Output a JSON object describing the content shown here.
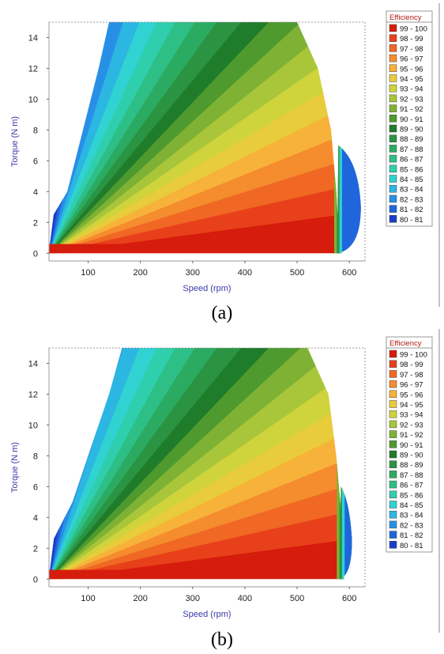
{
  "chart_data": [
    {
      "type": "heatmap",
      "panel_caption": "(a)",
      "xlabel": "Speed (rpm)",
      "ylabel": "Torque (N m)",
      "xlim": [
        25,
        630
      ],
      "ylim": [
        -0.5,
        15
      ],
      "x_ticks": [
        100,
        200,
        300,
        400,
        500,
        600
      ],
      "y_ticks": [
        0,
        2,
        4,
        6,
        8,
        10,
        12,
        14
      ],
      "grid": false,
      "legend_position": "right",
      "legend_title": "Efficiency",
      "legend": [
        {
          "label": "99 - 100",
          "color": "#d61c0c"
        },
        {
          "label": "98 - 99",
          "color": "#e8401a"
        },
        {
          "label": "97 - 98",
          "color": "#f06824"
        },
        {
          "label": "96 - 97",
          "color": "#f58c2e"
        },
        {
          "label": "95 - 96",
          "color": "#f7b23a"
        },
        {
          "label": "94 - 95",
          "color": "#e8cc3c"
        },
        {
          "label": "93 - 94",
          "color": "#cfd33c"
        },
        {
          "label": "92 - 93",
          "color": "#a9c63a"
        },
        {
          "label": "91 - 92",
          "color": "#7fb234"
        },
        {
          "label": "90 - 91",
          "color": "#4f9a2e"
        },
        {
          "label": "89 - 90",
          "color": "#1f7c2a"
        },
        {
          "label": "88 - 89",
          "color": "#2a9442"
        },
        {
          "label": "87 - 88",
          "color": "#2bab62"
        },
        {
          "label": "86 - 87",
          "color": "#2dbf86"
        },
        {
          "label": "85 - 86",
          "color": "#2fcfad"
        },
        {
          "label": "84 - 85",
          "color": "#30d2d2"
        },
        {
          "label": "83 - 84",
          "color": "#2cb6e2"
        },
        {
          "label": "82 - 83",
          "color": "#2790e6"
        },
        {
          "label": "81 - 82",
          "color": "#1f66dc"
        },
        {
          "label": "80 - 81",
          "color": "#1a3ec8"
        }
      ],
      "operating_region": {
        "left_boundary": [
          [
            25,
            2
          ],
          [
            60,
            4
          ],
          [
            90,
            8
          ],
          [
            120,
            12
          ],
          [
            140,
            15
          ]
        ],
        "top_flat_end_speed": 500,
        "right_boundary": [
          [
            500,
            15
          ],
          [
            540,
            12
          ],
          [
            565,
            8
          ],
          [
            575,
            4
          ],
          [
            580,
            1
          ],
          [
            585,
            0
          ]
        ],
        "bottom_torque": 0
      },
      "high_speed_lobe": {
        "x_max": 622,
        "y_max": 6
      }
    },
    {
      "type": "heatmap",
      "panel_caption": "(b)",
      "xlabel": "Speed (rpm)",
      "ylabel": "Torque (N m)",
      "xlim": [
        25,
        630
      ],
      "ylim": [
        -0.5,
        15
      ],
      "x_ticks": [
        100,
        200,
        300,
        400,
        500,
        600
      ],
      "y_ticks": [
        0,
        2,
        4,
        6,
        8,
        10,
        12,
        14
      ],
      "grid": false,
      "legend_position": "right",
      "legend_title": "Efficiency",
      "legend": [
        {
          "label": "99 - 100",
          "color": "#d61c0c"
        },
        {
          "label": "98 - 99",
          "color": "#e8401a"
        },
        {
          "label": "97 - 98",
          "color": "#f06824"
        },
        {
          "label": "96 - 97",
          "color": "#f58c2e"
        },
        {
          "label": "95 - 96",
          "color": "#f7b23a"
        },
        {
          "label": "94 - 95",
          "color": "#e8cc3c"
        },
        {
          "label": "93 - 94",
          "color": "#cfd33c"
        },
        {
          "label": "92 - 93",
          "color": "#a9c63a"
        },
        {
          "label": "91 - 92",
          "color": "#7fb234"
        },
        {
          "label": "90 - 91",
          "color": "#4f9a2e"
        },
        {
          "label": "89 - 90",
          "color": "#1f7c2a"
        },
        {
          "label": "88 - 89",
          "color": "#2a9442"
        },
        {
          "label": "87 - 88",
          "color": "#2bab62"
        },
        {
          "label": "86 - 87",
          "color": "#2dbf86"
        },
        {
          "label": "85 - 86",
          "color": "#2fcfad"
        },
        {
          "label": "84 - 85",
          "color": "#30d2d2"
        },
        {
          "label": "83 - 84",
          "color": "#2cb6e2"
        },
        {
          "label": "82 - 83",
          "color": "#2790e6"
        },
        {
          "label": "81 - 82",
          "color": "#1f66dc"
        },
        {
          "label": "80 - 81",
          "color": "#1a3ec8"
        }
      ],
      "operating_region": {
        "left_boundary": [
          [
            25,
            2
          ],
          [
            70,
            5
          ],
          [
            110,
            9
          ],
          [
            140,
            12
          ],
          [
            165,
            15
          ]
        ],
        "top_flat_end_speed": 520,
        "right_boundary": [
          [
            520,
            15
          ],
          [
            560,
            12
          ],
          [
            575,
            8
          ],
          [
            585,
            4
          ],
          [
            588,
            1
          ],
          [
            590,
            0
          ]
        ],
        "bottom_torque": 0
      },
      "high_speed_lobe": {
        "x_max": 605,
        "y_max": 5
      }
    }
  ]
}
